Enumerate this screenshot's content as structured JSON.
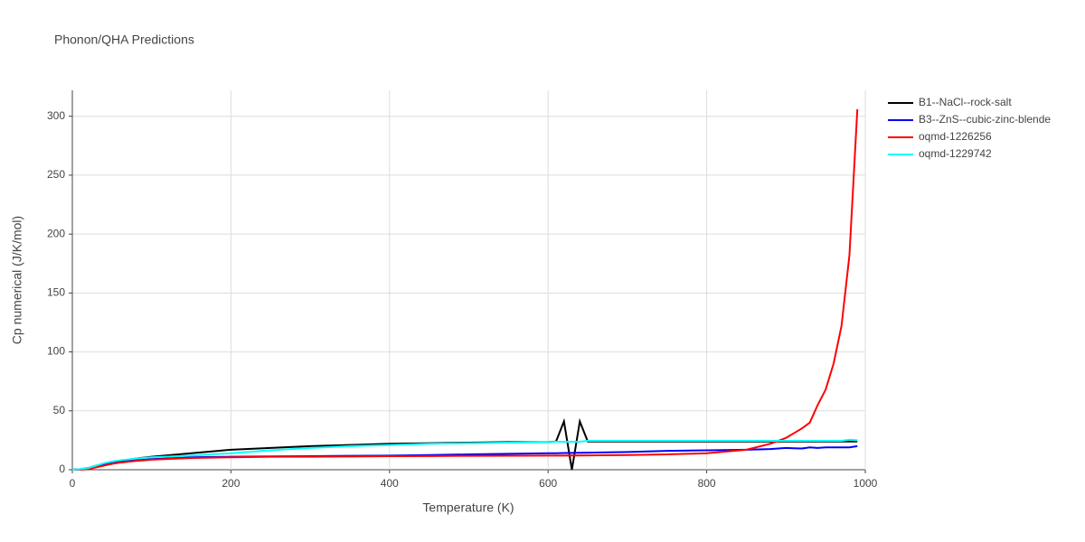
{
  "chart_data": {
    "type": "line",
    "title": "Phonon/QHA Predictions",
    "x_label": "Temperature (K)",
    "y_label": "Cp numerical (J/K/mol)",
    "x": [
      0,
      10,
      20,
      30,
      40,
      50,
      60,
      80,
      100,
      150,
      200,
      250,
      300,
      350,
      400,
      450,
      500,
      550,
      600,
      610,
      620,
      630,
      640,
      650,
      700,
      750,
      800,
      850,
      880,
      900,
      910,
      920,
      930,
      940,
      950,
      960,
      970,
      980,
      990
    ],
    "series": [
      {
        "name": "B1--NaCl--rock-salt",
        "color": "#000000",
        "values": [
          0,
          0.5,
          1.5,
          3.5,
          5,
          6.5,
          7.5,
          9.5,
          11,
          14,
          17,
          18.5,
          20,
          21,
          22,
          22.5,
          23,
          23.5,
          23.5,
          24,
          41,
          0,
          41,
          24,
          24,
          24,
          24,
          24,
          24,
          24,
          24,
          24,
          24,
          24,
          24,
          24,
          24,
          24,
          24
        ]
      },
      {
        "name": "B3--ZnS--cubic-zinc-blende",
        "color": "#0000ff",
        "values": [
          0,
          0.3,
          1,
          2.5,
          4,
          5.5,
          6.5,
          8,
          9,
          10.5,
          11,
          11.3,
          11.5,
          11.8,
          12,
          12.5,
          13,
          13.5,
          14,
          14,
          14.2,
          14.3,
          14.4,
          14.5,
          15,
          16,
          16.5,
          17,
          17.5,
          18.5,
          18.2,
          18,
          19,
          18.5,
          19,
          19,
          19,
          19,
          20
        ]
      },
      {
        "name": "oqmd-1226256",
        "color": "#ff0000",
        "values": [
          0,
          0,
          0.5,
          2,
          3.5,
          5,
          6,
          7.5,
          8.5,
          10,
          10.5,
          11,
          11,
          11.2,
          11.5,
          11.6,
          11.8,
          11.9,
          12,
          12,
          12,
          12.1,
          12.1,
          12.2,
          12.5,
          13,
          14,
          17,
          22,
          27,
          31,
          35,
          40,
          55,
          68,
          90,
          122,
          182,
          306
        ]
      },
      {
        "name": "oqmd-1229742",
        "color": "#00ffff",
        "values": [
          0,
          0.5,
          1.5,
          3.5,
          5.5,
          7,
          8,
          9.5,
          10.5,
          12,
          14,
          16.5,
          18.5,
          20,
          21,
          22,
          22.5,
          23,
          23.5,
          23.8,
          23.8,
          23.8,
          23.8,
          24.5,
          24.5,
          24.5,
          24.5,
          24.5,
          24.5,
          24.5,
          24.5,
          24.5,
          24.5,
          24.5,
          24.5,
          24.5,
          24.5,
          25.5,
          25
        ]
      }
    ],
    "xlim": [
      0,
      1000
    ],
    "xticks": [
      0,
      200,
      400,
      600,
      800,
      1000
    ],
    "ylim": [
      0,
      322
    ],
    "yticks": [
      0,
      50,
      100,
      150,
      200,
      250,
      300
    ],
    "grid": true,
    "legend": "right"
  }
}
